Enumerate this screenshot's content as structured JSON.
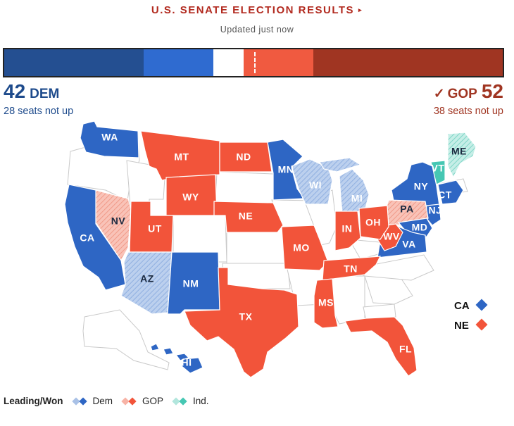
{
  "header": {
    "title": "U.S. SENATE ELECTION RESULTS",
    "title_arrow": "▸",
    "updated": "Updated just now"
  },
  "colors": {
    "dem_won": "#2e66c4",
    "dem_won_dark": "#1e4b8c",
    "dem_leading": "#a9c1e6",
    "gop_won": "#f2543a",
    "gop_won_dark": "#a03522",
    "gop_leading": "#f7b3a6",
    "ind": "#46c7b3",
    "ind_leading": "#b2e6dd",
    "no_race": "#ffffff",
    "border": "#c9c9c9"
  },
  "seat_bar": {
    "total": 100,
    "segments": [
      {
        "party": "dem",
        "kind": "not_up",
        "seats": 28,
        "color": "#244f91"
      },
      {
        "party": "dem",
        "kind": "won",
        "seats": 14,
        "color": "#2f6bd0"
      },
      {
        "party": "none",
        "kind": "undecided",
        "seats": 6,
        "color": "#ffffff"
      },
      {
        "party": "gop",
        "kind": "won",
        "seats": 14,
        "color": "#f05a40"
      },
      {
        "party": "gop",
        "kind": "not_up",
        "seats": 38,
        "color": "#a03522"
      }
    ]
  },
  "dem": {
    "count": "42",
    "label": "DEM",
    "sub": "28 seats not up"
  },
  "gop": {
    "check": "✓",
    "count": "52",
    "label": "GOP",
    "sub": "38 seats not up"
  },
  "states": [
    {
      "abbr": "WA",
      "status": "dem_won"
    },
    {
      "abbr": "MT",
      "status": "gop_won"
    },
    {
      "abbr": "ND",
      "status": "gop_won"
    },
    {
      "abbr": "MN",
      "status": "dem_won"
    },
    {
      "abbr": "WI",
      "status": "dem_leading"
    },
    {
      "abbr": "MI",
      "status": "dem_leading"
    },
    {
      "abbr": "ME",
      "status": "ind_leading"
    },
    {
      "abbr": "VT",
      "status": "ind"
    },
    {
      "abbr": "NY",
      "status": "dem_won"
    },
    {
      "abbr": "CT",
      "status": "dem_won"
    },
    {
      "abbr": "NJ",
      "status": "dem_won"
    },
    {
      "abbr": "PA",
      "status": "gop_leading"
    },
    {
      "abbr": "MD",
      "status": "dem_won"
    },
    {
      "abbr": "VA",
      "status": "dem_won"
    },
    {
      "abbr": "WV",
      "status": "gop_won"
    },
    {
      "abbr": "OH",
      "status": "gop_won"
    },
    {
      "abbr": "IN",
      "status": "gop_won"
    },
    {
      "abbr": "WY",
      "status": "gop_won"
    },
    {
      "abbr": "NE",
      "status": "gop_won"
    },
    {
      "abbr": "NV",
      "status": "gop_leading"
    },
    {
      "abbr": "UT",
      "status": "gop_won"
    },
    {
      "abbr": "CA",
      "status": "dem_won"
    },
    {
      "abbr": "MO",
      "status": "gop_won"
    },
    {
      "abbr": "TN",
      "status": "gop_won"
    },
    {
      "abbr": "AZ",
      "status": "dem_leading"
    },
    {
      "abbr": "NM",
      "status": "dem_won"
    },
    {
      "abbr": "TX",
      "status": "gop_won"
    },
    {
      "abbr": "MS",
      "status": "gop_won"
    },
    {
      "abbr": "FL",
      "status": "gop_won"
    },
    {
      "abbr": "HI",
      "status": "dem_won"
    }
  ],
  "special_races": [
    {
      "abbr": "CA",
      "status": "dem_won"
    },
    {
      "abbr": "NE",
      "status": "gop_won"
    }
  ],
  "legend": {
    "lead_label": "Leading/Won",
    "items": [
      {
        "label": "Dem",
        "light": "#a9c1e6",
        "dark": "#2e66c4"
      },
      {
        "label": "GOP",
        "light": "#f7b3a6",
        "dark": "#f2543a"
      },
      {
        "label": "Ind.",
        "light": "#b2e6dd",
        "dark": "#46c7b3"
      }
    ]
  }
}
